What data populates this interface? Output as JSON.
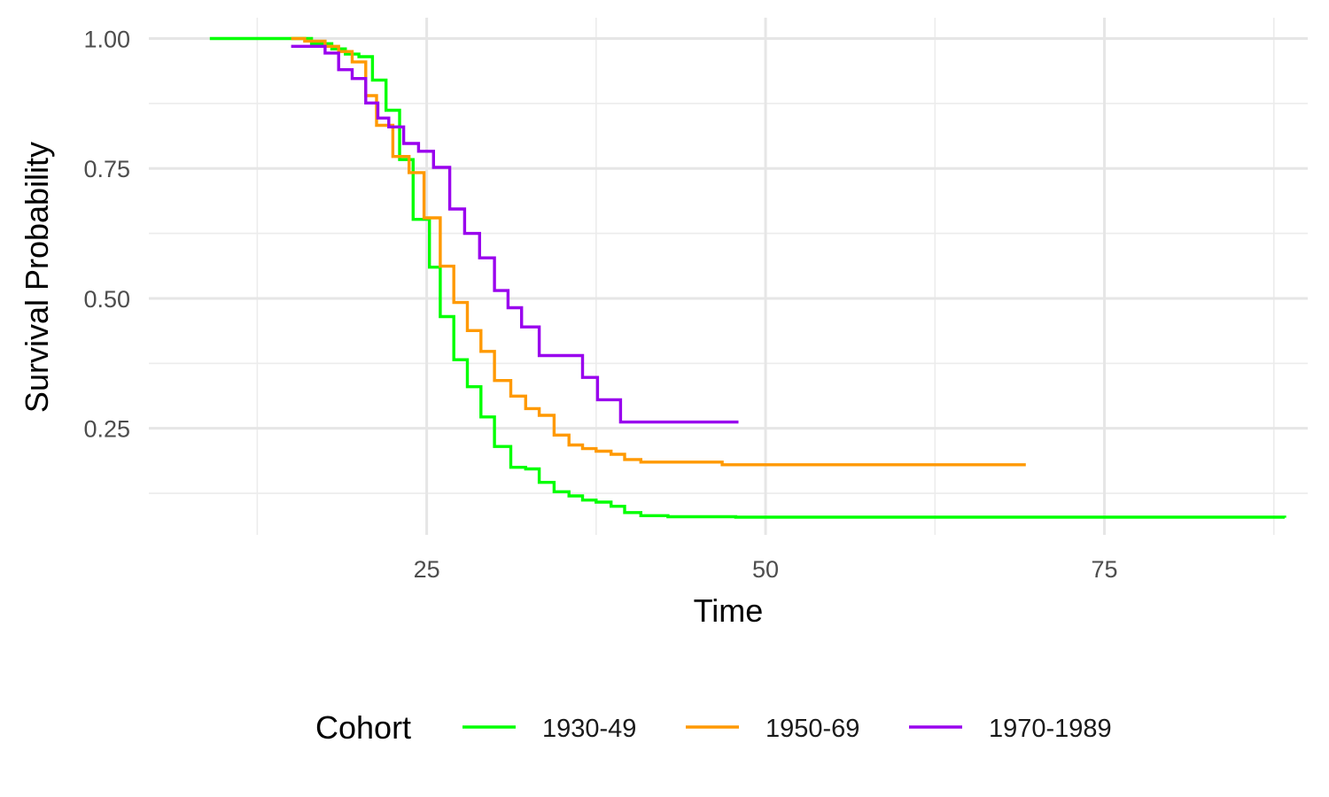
{
  "chart_data": {
    "type": "line",
    "step": true,
    "xlabel": "Time",
    "ylabel": "Survival Probability",
    "xlim": [
      4.5,
      90
    ],
    "ylim": [
      0.045,
      1.04
    ],
    "x_ticks": [
      25,
      50,
      75
    ],
    "x_minor": [
      12.5,
      37.5,
      62.5,
      87.5
    ],
    "y_ticks": [
      0.25,
      0.5,
      0.75,
      1.0
    ],
    "y_tick_labels": [
      "0.25",
      "0.50",
      "0.75",
      "1.00"
    ],
    "y_minor": [
      0.125,
      0.375,
      0.625,
      0.875
    ],
    "grid": true,
    "legend": {
      "position": "bottom",
      "title": "Cohort"
    },
    "series": [
      {
        "name": "1930-49",
        "color": "#00ff00",
        "points": [
          [
            9,
            1.0
          ],
          [
            15,
            1.0
          ],
          [
            16.5,
            0.99
          ],
          [
            18,
            0.98
          ],
          [
            19,
            0.97
          ],
          [
            20,
            0.965
          ],
          [
            21,
            0.92
          ],
          [
            22,
            0.862
          ],
          [
            23,
            0.767
          ],
          [
            24,
            0.652
          ],
          [
            25.2,
            0.56
          ],
          [
            26,
            0.465
          ],
          [
            27,
            0.382
          ],
          [
            28,
            0.33
          ],
          [
            29,
            0.272
          ],
          [
            30,
            0.215
          ],
          [
            31.2,
            0.175
          ],
          [
            32.3,
            0.172
          ],
          [
            33.3,
            0.146
          ],
          [
            34.4,
            0.128
          ],
          [
            35.5,
            0.12
          ],
          [
            36.5,
            0.112
          ],
          [
            37.5,
            0.108
          ],
          [
            38.6,
            0.1
          ],
          [
            39.6,
            0.088
          ],
          [
            40.8,
            0.082
          ],
          [
            42.8,
            0.08
          ],
          [
            47.8,
            0.079
          ],
          [
            88.3,
            0.078
          ]
        ]
      },
      {
        "name": "1950-69",
        "color": "#ff9900",
        "points": [
          [
            15,
            1.0
          ],
          [
            16,
            0.995
          ],
          [
            17.5,
            0.985
          ],
          [
            18.5,
            0.975
          ],
          [
            19.5,
            0.955
          ],
          [
            20.5,
            0.89
          ],
          [
            21.3,
            0.833
          ],
          [
            22.5,
            0.773
          ],
          [
            23.7,
            0.742
          ],
          [
            24.8,
            0.655
          ],
          [
            26,
            0.562
          ],
          [
            27,
            0.492
          ],
          [
            28,
            0.438
          ],
          [
            29,
            0.398
          ],
          [
            30,
            0.342
          ],
          [
            31.2,
            0.312
          ],
          [
            32.3,
            0.288
          ],
          [
            33.3,
            0.275
          ],
          [
            34.4,
            0.237
          ],
          [
            35.5,
            0.218
          ],
          [
            36.5,
            0.211
          ],
          [
            37.5,
            0.206
          ],
          [
            38.6,
            0.2
          ],
          [
            39.6,
            0.19
          ],
          [
            40.8,
            0.185
          ],
          [
            46.8,
            0.18
          ],
          [
            69.2,
            0.18
          ]
        ]
      },
      {
        "name": "1970-1989",
        "color": "#9900ee",
        "points": [
          [
            15,
            0.985
          ],
          [
            17.5,
            0.972
          ],
          [
            18.5,
            0.94
          ],
          [
            19.5,
            0.923
          ],
          [
            20.5,
            0.876
          ],
          [
            21.4,
            0.847
          ],
          [
            22.2,
            0.83
          ],
          [
            23.3,
            0.798
          ],
          [
            24.4,
            0.783
          ],
          [
            25.5,
            0.752
          ],
          [
            26.7,
            0.672
          ],
          [
            27.8,
            0.625
          ],
          [
            28.9,
            0.578
          ],
          [
            30,
            0.515
          ],
          [
            31,
            0.482
          ],
          [
            32,
            0.445
          ],
          [
            33.3,
            0.39
          ],
          [
            36.5,
            0.348
          ],
          [
            37.6,
            0.305
          ],
          [
            39.3,
            0.262
          ],
          [
            48,
            0.262
          ]
        ]
      }
    ]
  }
}
